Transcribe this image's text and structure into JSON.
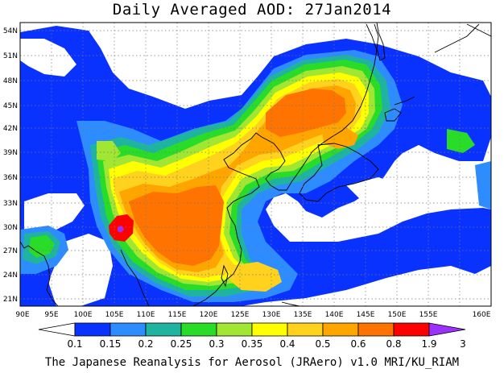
{
  "title": "Daily Averaged AOD: 27Jan2014",
  "footer": "The Japanese Reanalysis for Aerosol (JRAero) v1.0 MRI/KU_RIAM",
  "lat_labels": [
    "54N",
    "51N",
    "48N",
    "45N",
    "42N",
    "39N",
    "36N",
    "33N",
    "30N",
    "27N",
    "24N",
    "21N"
  ],
  "lon_labels": [
    "90E",
    "95E",
    "100E",
    "105E",
    "110E",
    "115E",
    "120E",
    "125E",
    "130E",
    "135E",
    "140E",
    "145E",
    "150E",
    "155E",
    "160E"
  ],
  "colorbar": {
    "labels": [
      "0.1",
      "0.15",
      "0.2",
      "0.25",
      "0.3",
      "0.35",
      "0.4",
      "0.5",
      "0.6",
      "0.8",
      "1.9",
      "3"
    ],
    "colors": [
      "#ffffff",
      "#0a32ff",
      "#2d8cff",
      "#1eb4a0",
      "#28dc28",
      "#a0e632",
      "#ffff00",
      "#ffd21e",
      "#ffa500",
      "#ff7300",
      "#ff0000",
      "#9b30ff"
    ]
  }
}
